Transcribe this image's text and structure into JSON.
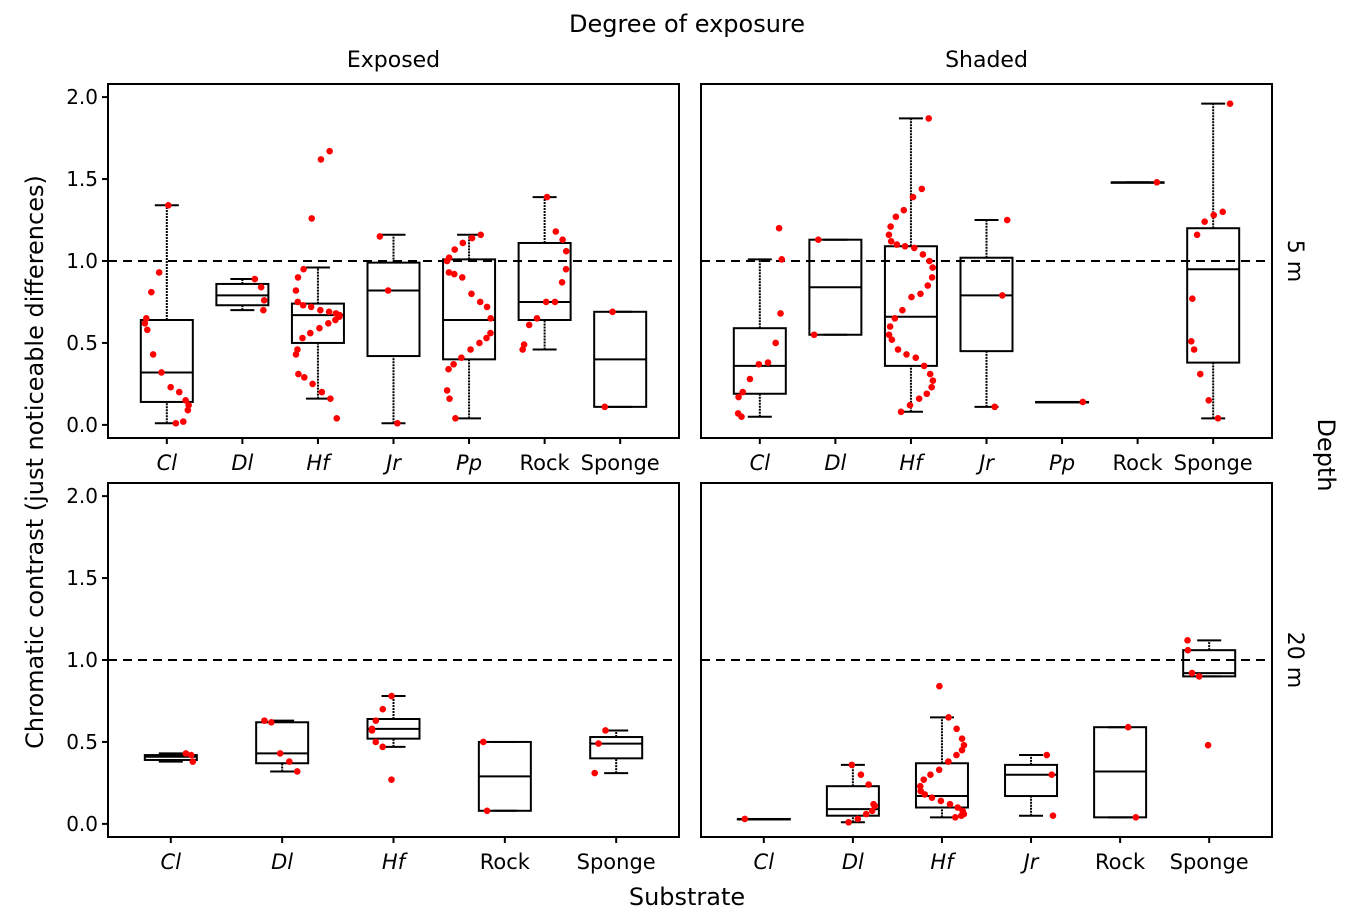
{
  "chart_data": {
    "type": "boxplot",
    "title": "Degree of exposure",
    "xlabel": "Substrate",
    "ylabel": "Chromatic contrast (just noticeable differences)",
    "facet_row_title": "Depth",
    "columns": [
      "Exposed",
      "Shaded"
    ],
    "rows": [
      "5 m",
      "20 m"
    ],
    "ylim": [
      -0.08,
      2.08
    ],
    "yticks": [
      "0.0",
      "0.5",
      "1.0",
      "1.5",
      "2.0"
    ],
    "reference_line": 1.0,
    "panels": [
      {
        "exposure": "Exposed",
        "depth": "5 m",
        "groups": [
          {
            "name": "Cl",
            "italic": true,
            "box": {
              "min": 0.01,
              "q1": 0.14,
              "median": 0.32,
              "q3": 0.64,
              "max": 1.34
            },
            "points": [
              0.01,
              0.02,
              0.09,
              0.12,
              0.15,
              0.2,
              0.23,
              0.32,
              0.43,
              0.58,
              0.62,
              0.65,
              0.81,
              0.93,
              1.34
            ]
          },
          {
            "name": "Dl",
            "italic": true,
            "box": {
              "min": 0.7,
              "q1": 0.73,
              "median": 0.79,
              "q3": 0.86,
              "max": 0.89
            },
            "points": [
              0.7,
              0.76,
              0.84,
              0.89
            ]
          },
          {
            "name": "Hf",
            "italic": true,
            "box": {
              "min": 0.16,
              "q1": 0.5,
              "median": 0.67,
              "q3": 0.74,
              "max": 0.96
            },
            "points": [
              0.04,
              0.16,
              0.2,
              0.25,
              0.29,
              0.31,
              0.43,
              0.46,
              0.53,
              0.56,
              0.59,
              0.62,
              0.64,
              0.66,
              0.67,
              0.68,
              0.69,
              0.7,
              0.72,
              0.73,
              0.75,
              0.82,
              0.9,
              0.95,
              1.26,
              1.62,
              1.67
            ]
          },
          {
            "name": "Jr",
            "italic": true,
            "box": {
              "min": 0.01,
              "q1": 0.42,
              "median": 0.82,
              "q3": 0.99,
              "max": 1.16
            },
            "points": [
              0.01,
              0.82,
              1.15
            ]
          },
          {
            "name": "Pp",
            "italic": true,
            "box": {
              "min": 0.04,
              "q1": 0.4,
              "median": 0.64,
              "q3": 1.01,
              "max": 1.16
            },
            "points": [
              0.04,
              0.16,
              0.21,
              0.34,
              0.37,
              0.41,
              0.46,
              0.5,
              0.53,
              0.56,
              0.65,
              0.72,
              0.75,
              0.8,
              0.9,
              0.92,
              0.93,
              1.0,
              1.02,
              1.07,
              1.11,
              1.14,
              1.16
            ]
          },
          {
            "name": "Rock",
            "italic": false,
            "box": {
              "min": 0.46,
              "q1": 0.64,
              "median": 0.75,
              "q3": 1.11,
              "max": 1.39
            },
            "points": [
              0.46,
              0.49,
              0.61,
              0.65,
              0.75,
              0.75,
              0.87,
              0.95,
              1.06,
              1.13,
              1.18,
              1.39
            ]
          },
          {
            "name": "Sponge",
            "italic": false,
            "box": {
              "min": 0.11,
              "q1": 0.11,
              "median": 0.4,
              "q3": 0.69,
              "max": 0.69
            },
            "points": [
              0.11,
              0.69
            ]
          }
        ]
      },
      {
        "exposure": "Shaded",
        "depth": "5 m",
        "groups": [
          {
            "name": "Cl",
            "italic": true,
            "box": {
              "min": 0.05,
              "q1": 0.19,
              "median": 0.36,
              "q3": 0.59,
              "max": 1.01
            },
            "points": [
              0.05,
              0.07,
              0.17,
              0.2,
              0.28,
              0.37,
              0.38,
              0.5,
              0.68,
              1.01,
              1.2
            ]
          },
          {
            "name": "Dl",
            "italic": true,
            "box": {
              "min": 0.55,
              "q1": 0.55,
              "median": 0.84,
              "q3": 1.13,
              "max": 1.13
            },
            "points": [
              0.55,
              1.13
            ]
          },
          {
            "name": "Hf",
            "italic": true,
            "box": {
              "min": 0.08,
              "q1": 0.36,
              "median": 0.66,
              "q3": 1.09,
              "max": 1.87
            },
            "points": [
              0.08,
              0.12,
              0.16,
              0.19,
              0.23,
              0.27,
              0.31,
              0.36,
              0.41,
              0.43,
              0.46,
              0.52,
              0.55,
              0.6,
              0.65,
              0.7,
              0.78,
              0.8,
              0.85,
              0.9,
              0.96,
              1.0,
              1.04,
              1.08,
              1.09,
              1.1,
              1.12,
              1.16,
              1.21,
              1.27,
              1.31,
              1.39,
              1.44,
              1.87
            ]
          },
          {
            "name": "Jr",
            "italic": true,
            "box": {
              "min": 0.11,
              "q1": 0.45,
              "median": 0.79,
              "q3": 1.02,
              "max": 1.25
            },
            "points": [
              0.11,
              0.79,
              1.25
            ]
          },
          {
            "name": "Pp",
            "italic": true,
            "box": {
              "min": 0.14,
              "q1": 0.14,
              "median": 0.14,
              "q3": 0.14,
              "max": 0.14
            },
            "points": [
              0.14
            ]
          },
          {
            "name": "Rock",
            "italic": false,
            "box": {
              "min": 1.48,
              "q1": 1.48,
              "median": 1.48,
              "q3": 1.48,
              "max": 1.48
            },
            "points": [
              1.48
            ]
          },
          {
            "name": "Sponge",
            "italic": false,
            "box": {
              "min": 0.04,
              "q1": 0.38,
              "median": 0.95,
              "q3": 1.2,
              "max": 1.96
            },
            "points": [
              0.04,
              0.15,
              0.31,
              0.46,
              0.51,
              0.77,
              1.16,
              1.24,
              1.28,
              1.3,
              1.96
            ]
          }
        ]
      },
      {
        "exposure": "Exposed",
        "depth": "20 m",
        "groups": [
          {
            "name": "Cl",
            "italic": true,
            "box": {
              "min": 0.38,
              "q1": 0.39,
              "median": 0.41,
              "q3": 0.42,
              "max": 0.43
            },
            "points": [
              0.38,
              0.42,
              0.43
            ]
          },
          {
            "name": "Dl",
            "italic": true,
            "box": {
              "min": 0.32,
              "q1": 0.37,
              "median": 0.43,
              "q3": 0.62,
              "max": 0.63
            },
            "points": [
              0.32,
              0.38,
              0.43,
              0.62,
              0.63
            ]
          },
          {
            "name": "Hf",
            "italic": true,
            "box": {
              "min": 0.47,
              "q1": 0.52,
              "median": 0.58,
              "q3": 0.64,
              "max": 0.78
            },
            "points": [
              0.27,
              0.47,
              0.5,
              0.57,
              0.58,
              0.63,
              0.7,
              0.78
            ]
          },
          {
            "name": "Rock",
            "italic": false,
            "box": {
              "min": 0.08,
              "q1": 0.08,
              "median": 0.29,
              "q3": 0.5,
              "max": 0.5
            },
            "points": [
              0.08,
              0.5
            ]
          },
          {
            "name": "Sponge",
            "italic": false,
            "box": {
              "min": 0.31,
              "q1": 0.4,
              "median": 0.49,
              "q3": 0.53,
              "max": 0.57
            },
            "points": [
              0.31,
              0.49,
              0.57
            ]
          }
        ]
      },
      {
        "exposure": "Shaded",
        "depth": "20 m",
        "groups": [
          {
            "name": "Cl",
            "italic": true,
            "box": {
              "min": 0.03,
              "q1": 0.03,
              "median": 0.03,
              "q3": 0.03,
              "max": 0.03
            },
            "points": [
              0.03
            ]
          },
          {
            "name": "Dl",
            "italic": true,
            "box": {
              "min": 0.01,
              "q1": 0.05,
              "median": 0.09,
              "q3": 0.23,
              "max": 0.36
            },
            "points": [
              0.01,
              0.03,
              0.06,
              0.08,
              0.11,
              0.12,
              0.24,
              0.3,
              0.36
            ]
          },
          {
            "name": "Hf",
            "italic": true,
            "box": {
              "min": 0.04,
              "q1": 0.1,
              "median": 0.17,
              "q3": 0.37,
              "max": 0.65
            },
            "points": [
              0.04,
              0.05,
              0.06,
              0.08,
              0.1,
              0.12,
              0.14,
              0.16,
              0.18,
              0.2,
              0.23,
              0.27,
              0.3,
              0.33,
              0.38,
              0.42,
              0.45,
              0.48,
              0.52,
              0.58,
              0.65,
              0.84
            ]
          },
          {
            "name": "Jr",
            "italic": true,
            "box": {
              "min": 0.05,
              "q1": 0.17,
              "median": 0.3,
              "q3": 0.36,
              "max": 0.42
            },
            "points": [
              0.05,
              0.3,
              0.42
            ]
          },
          {
            "name": "Rock",
            "italic": false,
            "box": {
              "min": 0.04,
              "q1": 0.04,
              "median": 0.32,
              "q3": 0.59,
              "max": 0.59
            },
            "points": [
              0.04,
              0.59
            ]
          },
          {
            "name": "Sponge",
            "italic": false,
            "box": {
              "min": 0.9,
              "q1": 0.9,
              "median": 0.92,
              "q3": 1.06,
              "max": 1.12
            },
            "points": [
              0.48,
              0.9,
              0.92,
              1.06,
              1.12
            ]
          }
        ]
      }
    ],
    "colors": {
      "points": "#ff0000",
      "box": "#000000"
    }
  }
}
